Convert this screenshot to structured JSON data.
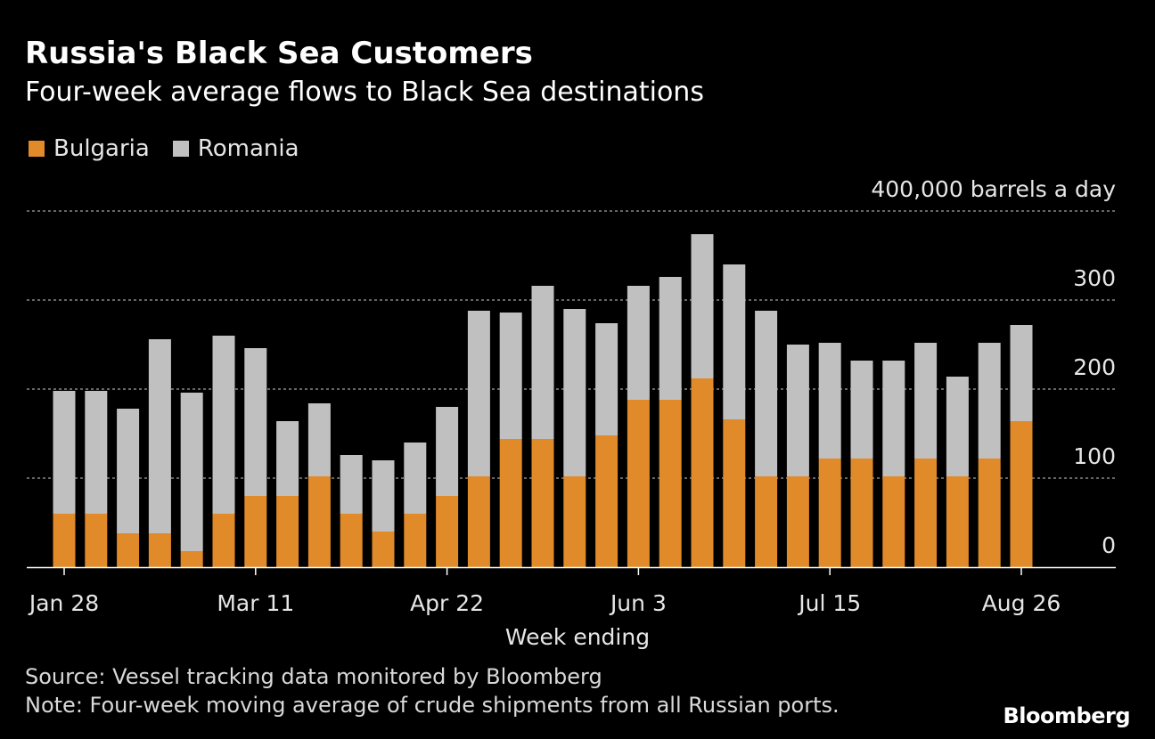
{
  "header": {
    "title": "Russia's Black Sea Customers",
    "subtitle": "Four-week average flows to Black Sea destinations"
  },
  "legend": [
    {
      "label": "Bulgaria",
      "color": "#e08a2a"
    },
    {
      "label": "Romania",
      "color": "#c0c0c0"
    }
  ],
  "colors": {
    "bulgaria": "#e08a2a",
    "romania": "#c0c0c0",
    "grid": "#888888",
    "axis": "#ffffff",
    "text": "#e6e6e6"
  },
  "chart_data": {
    "type": "bar",
    "stacked": true,
    "title": "Russia's Black Sea Customers",
    "subtitle": "Four-week average flows to Black Sea destinations",
    "xlabel": "Week ending",
    "ylabel": "",
    "ylim": [
      0,
      400
    ],
    "y_ticks": [
      0,
      100,
      200,
      300,
      400
    ],
    "y_tick_labels": [
      "0",
      "100",
      "200",
      "300",
      "400,000 barrels a day"
    ],
    "x_tick_labels": [
      {
        "label": "Jan 28",
        "index": 0
      },
      {
        "label": "Mar 11",
        "index": 6
      },
      {
        "label": "Apr 22",
        "index": 12
      },
      {
        "label": "Jun 3",
        "index": 18
      },
      {
        "label": "Jul 15",
        "index": 24
      },
      {
        "label": "Aug 26",
        "index": 30
      }
    ],
    "series": [
      {
        "name": "Bulgaria",
        "color": "#e08a2a",
        "values": [
          60,
          60,
          38,
          38,
          18,
          60,
          80,
          80,
          102,
          60,
          40,
          60,
          80,
          102,
          144,
          144,
          102,
          148,
          188,
          188,
          212,
          166,
          102,
          102,
          122,
          122,
          102,
          122,
          102,
          122,
          164
        ]
      },
      {
        "name": "Romania",
        "color": "#c0c0c0",
        "values": [
          138,
          138,
          140,
          218,
          178,
          200,
          166,
          84,
          82,
          66,
          80,
          80,
          100,
          186,
          142,
          172,
          188,
          126,
          128,
          138,
          162,
          174,
          186,
          148,
          130,
          110,
          130,
          130,
          112,
          130,
          108
        ]
      }
    ]
  },
  "footer": {
    "source": "Source: Vessel tracking data monitored by Bloomberg",
    "note": "Note: Four-week moving average of crude shipments from all Russian ports.",
    "logo": "Bloomberg"
  }
}
